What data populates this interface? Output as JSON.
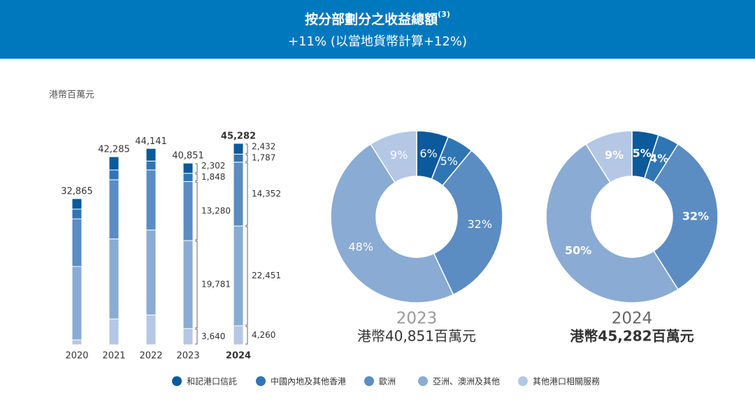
{
  "header": {
    "title": "按分部劃分之收益總額",
    "title_note": "(3)",
    "subtitle": "+11% (以當地貨幣計算+12%)"
  },
  "chart_data": [
    {
      "type": "bar",
      "unit": "港幣百萬元",
      "categories": [
        "2020",
        "2021",
        "2022",
        "2023",
        "2024"
      ],
      "totals": [
        32865,
        42285,
        44141,
        40851,
        45282
      ],
      "total_labels": [
        "32,865",
        "42,285",
        "44,141",
        "40,851",
        "45,282"
      ],
      "series": [
        {
          "name": "其他港口相關服務",
          "color": "#b4c7e5",
          "values": [
            1100,
            5800,
            6700,
            3640,
            4260
          ],
          "value_labels": [
            null,
            null,
            null,
            "3,640",
            "4,260"
          ]
        },
        {
          "name": "亞洲、澳洲及其他",
          "color": "#8aabd3",
          "values": [
            16500,
            18000,
            19100,
            19781,
            22451
          ],
          "value_labels": [
            null,
            null,
            null,
            "19,781",
            "22,451"
          ]
        },
        {
          "name": "歐洲",
          "color": "#5b8cc2",
          "values": [
            10700,
            13300,
            13500,
            13280,
            14352
          ],
          "value_labels": [
            null,
            null,
            null,
            "13,280",
            "14,352"
          ]
        },
        {
          "name": "中國內地及其他香港",
          "color": "#2f76b5",
          "values": [
            2200,
            2200,
            2000,
            1848,
            1787
          ],
          "value_labels": [
            null,
            null,
            null,
            "1,848",
            "1,787"
          ]
        },
        {
          "name": "和記港口信託",
          "color": "#0b5a9c",
          "values": [
            2365,
            2985,
            2841,
            2302,
            2432
          ],
          "value_labels": [
            null,
            null,
            null,
            "2,302",
            "2,432"
          ]
        }
      ]
    },
    {
      "type": "pie",
      "title": "2023",
      "subtitle": "港幣40,851百萬元",
      "values": [
        6,
        5,
        32,
        48,
        9
      ],
      "value_labels": [
        "6%",
        "5%",
        "32%",
        "48%",
        "9%"
      ],
      "colors": [
        "#0b5a9c",
        "#2f76b5",
        "#5b8cc2",
        "#8aabd3",
        "#b4c7e5"
      ]
    },
    {
      "type": "pie",
      "title": "2024",
      "subtitle": "港幣45,282百萬元",
      "values": [
        5,
        4,
        32,
        50,
        9
      ],
      "value_labels": [
        "5%",
        "4%",
        "32%",
        "50%",
        "9%"
      ],
      "colors": [
        "#0b5a9c",
        "#2f76b5",
        "#5b8cc2",
        "#8aabd3",
        "#b4c7e5"
      ]
    }
  ]
}
